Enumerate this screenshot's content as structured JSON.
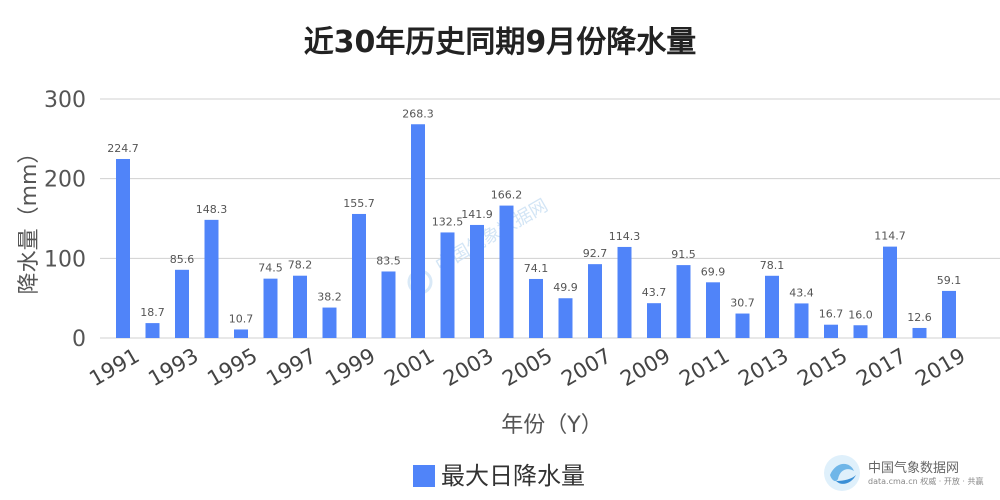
{
  "chart_data": {
    "type": "bar",
    "title": "近30年历史同期9月份降水量",
    "xlabel": "年份（Y）",
    "ylabel": "降水量（mm）",
    "ylim": [
      0,
      300
    ],
    "yticks": [
      0,
      100,
      200,
      300
    ],
    "grid": true,
    "legend_position": "bottom-center",
    "categories": [
      "1991",
      "1992",
      "1993",
      "1994",
      "1995",
      "1996",
      "1997",
      "1998",
      "1999",
      "2000",
      "2001",
      "2002",
      "2003",
      "2004",
      "2005",
      "2006",
      "2007",
      "2008",
      "2009",
      "2010",
      "2011",
      "2012",
      "2013",
      "2014",
      "2015",
      "2016",
      "2017",
      "2018",
      "2019",
      "2020"
    ],
    "xtick_labels": [
      "1991",
      "",
      "1993",
      "",
      "1995",
      "",
      "1997",
      "",
      "1999",
      "",
      "2001",
      "",
      "2003",
      "",
      "2005",
      "",
      "2007",
      "",
      "2009",
      "",
      "2011",
      "",
      "2013",
      "",
      "2015",
      "",
      "2017",
      "",
      "2019",
      ""
    ],
    "series": [
      {
        "name": "最大日降水量",
        "color": "#5084f9",
        "values": [
          224.7,
          18.7,
          85.6,
          148.3,
          10.7,
          74.5,
          78.2,
          38.2,
          155.7,
          83.5,
          268.3,
          132.5,
          141.9,
          166.2,
          74.1,
          49.9,
          92.7,
          114.3,
          43.7,
          91.5,
          69.9,
          30.7,
          78.1,
          43.4,
          16.7,
          16.0,
          114.7,
          12.6,
          59.1,
          null
        ],
        "data_labels": [
          "224.7",
          "18.7",
          "85.6",
          "148.3",
          "10.7",
          "74.5",
          "78.2",
          "38.2",
          "155.7",
          "83.5",
          "268.3",
          "132.5",
          "141.9",
          "166.2",
          "74.1",
          "49.9",
          "92.7",
          "114.3",
          "43.7",
          "91.5",
          "69.9",
          "30.7",
          "78.1",
          "43.4",
          "16.7",
          "16.0",
          "114.7",
          "12.6",
          "59.1",
          ""
        ]
      }
    ]
  },
  "watermark": {
    "text": "中国气象数据网",
    "color": "#cfe3f5"
  },
  "branding": {
    "name": "中国气象数据网",
    "tagline": "data.cma.cn 权威 · 开放 · 共赢",
    "icon": "cma-logo-icon"
  },
  "colors": {
    "grid": "#d0d0d0",
    "bar": "#5084f9"
  }
}
